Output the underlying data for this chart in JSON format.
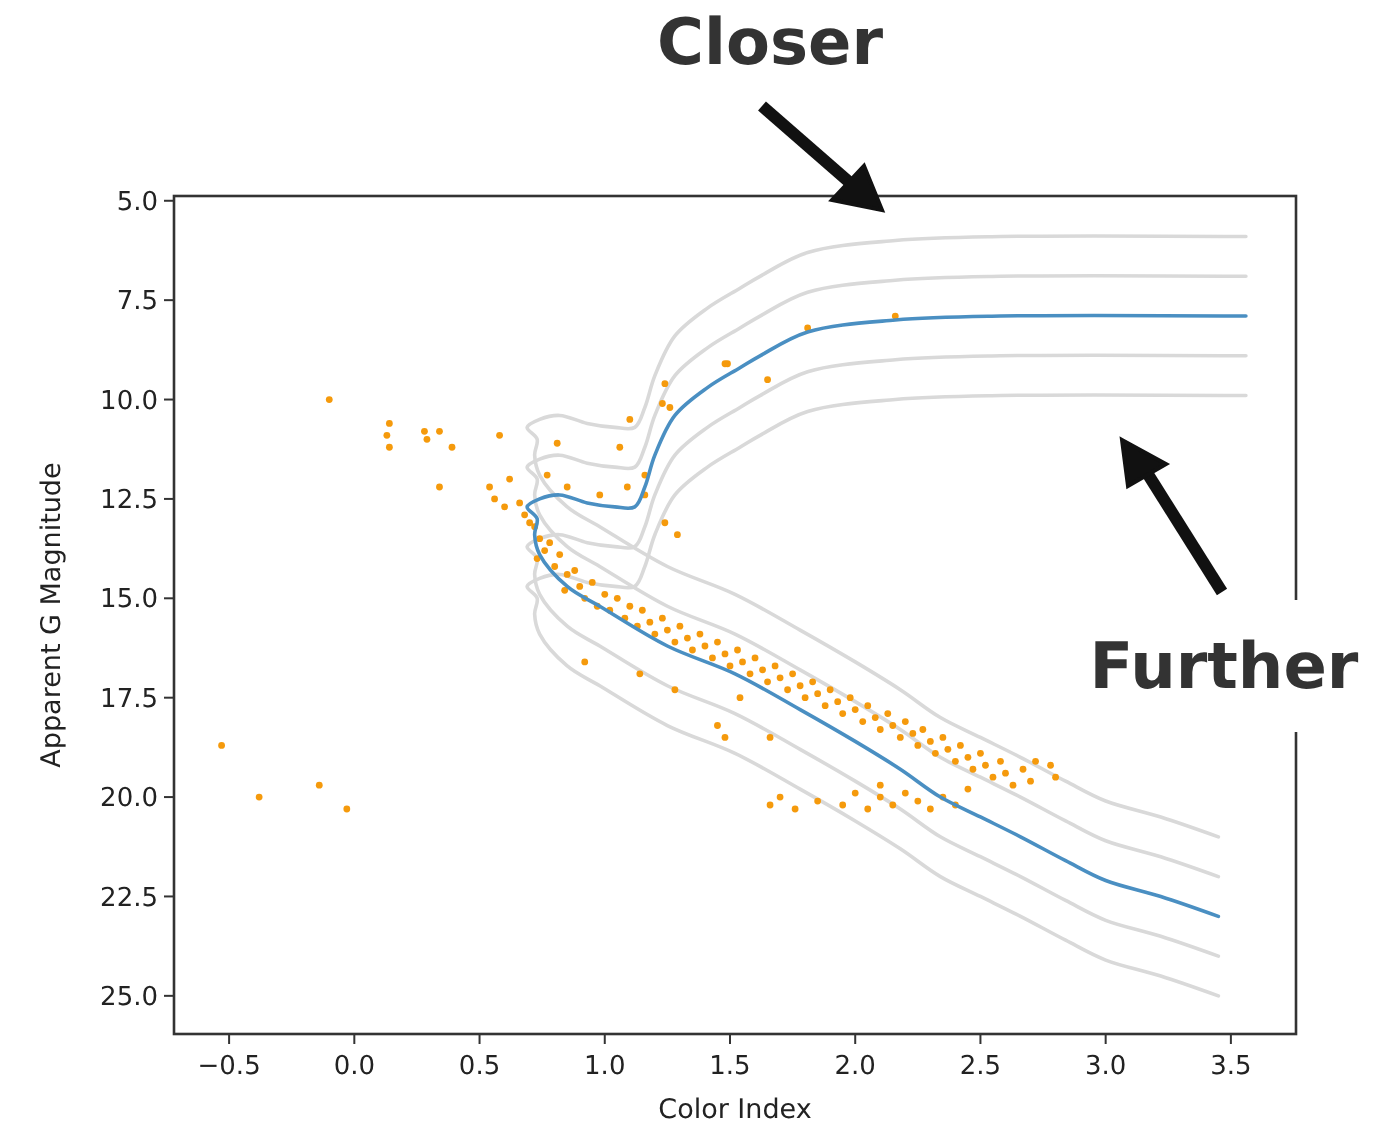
{
  "chart_data": {
    "type": "scatter",
    "xlabel": "Color Index",
    "ylabel": "Apparent G Magnitude",
    "annotations": [
      "Closer",
      "Further"
    ],
    "xlim": [
      -0.72,
      3.76
    ],
    "ylim": [
      25.96,
      4.88
    ],
    "xticks": [
      {
        "value": -0.5,
        "label": "−0.5"
      },
      {
        "value": 0,
        "label": "0.0"
      },
      {
        "value": 0.5,
        "label": "0.5"
      },
      {
        "value": 1,
        "label": "1.0"
      },
      {
        "value": 1.5,
        "label": "1.5"
      },
      {
        "value": 2,
        "label": "2.0"
      },
      {
        "value": 2.5,
        "label": "2.5"
      },
      {
        "value": 3,
        "label": "3.0"
      },
      {
        "value": 3.5,
        "label": "3.5"
      }
    ],
    "yticks": [
      {
        "value": 5,
        "label": "5.0"
      },
      {
        "value": 7.5,
        "label": "7.5"
      },
      {
        "value": 10,
        "label": "10.0"
      },
      {
        "value": 12.5,
        "label": "12.5"
      },
      {
        "value": 15,
        "label": "15.0"
      },
      {
        "value": 17.5,
        "label": "17.5"
      },
      {
        "value": 20,
        "label": "20.0"
      },
      {
        "value": 22.5,
        "label": "22.5"
      },
      {
        "value": 25,
        "label": "25.0"
      }
    ],
    "grid": false,
    "series": [
      {
        "type": "line",
        "color": "#d9d9d9",
        "x": [
          3.56,
          2.58,
          2.16,
          1.81,
          1.62,
          1.54,
          1.41,
          1.28,
          1.2,
          1.16,
          1.12,
          1.04,
          0.93,
          0.82,
          0.74,
          0.69,
          0.73,
          0.72,
          0.74,
          0.85,
          0.98,
          1.25,
          1.52,
          1.78,
          2.0,
          2.18,
          2.34,
          2.5,
          2.66,
          2.84,
          3.0,
          3.22,
          3.45
        ],
        "values": [
          5.9,
          5.9,
          6.0,
          6.3,
          6.9,
          7.2,
          7.7,
          8.4,
          9.4,
          10.2,
          10.7,
          10.7,
          10.6,
          10.4,
          10.5,
          10.7,
          11.0,
          11.4,
          11.9,
          12.7,
          13.2,
          14.2,
          14.9,
          15.8,
          16.6,
          17.3,
          18.0,
          18.5,
          19.0,
          19.6,
          20.1,
          20.5,
          21.0
        ]
      },
      {
        "type": "line",
        "color": "#d9d9d9",
        "x": [
          3.56,
          2.58,
          2.16,
          1.81,
          1.62,
          1.54,
          1.41,
          1.28,
          1.2,
          1.16,
          1.12,
          1.04,
          0.93,
          0.82,
          0.74,
          0.69,
          0.73,
          0.72,
          0.74,
          0.85,
          0.98,
          1.25,
          1.52,
          1.78,
          2.0,
          2.18,
          2.34,
          2.5,
          2.66,
          2.84,
          3.0,
          3.22,
          3.45
        ],
        "values": [
          6.9,
          6.9,
          7.0,
          7.3,
          7.9,
          8.2,
          8.7,
          9.4,
          10.4,
          11.2,
          11.7,
          11.7,
          11.6,
          11.4,
          11.5,
          11.7,
          12.0,
          12.4,
          12.9,
          13.7,
          14.2,
          15.2,
          15.9,
          16.8,
          17.6,
          18.3,
          19.0,
          19.5,
          20.0,
          20.6,
          21.1,
          21.5,
          22.0
        ]
      },
      {
        "type": "line",
        "color": "#d9d9d9",
        "x": [
          3.56,
          2.58,
          2.16,
          1.81,
          1.62,
          1.54,
          1.41,
          1.28,
          1.2,
          1.16,
          1.12,
          1.04,
          0.93,
          0.82,
          0.74,
          0.69,
          0.73,
          0.72,
          0.74,
          0.85,
          0.98,
          1.25,
          1.52,
          1.78,
          2.0,
          2.18,
          2.34,
          2.5,
          2.66,
          2.84,
          3.0,
          3.22,
          3.45
        ],
        "values": [
          8.9,
          8.9,
          9.0,
          9.3,
          9.9,
          10.2,
          10.7,
          11.4,
          12.4,
          13.2,
          13.7,
          13.7,
          13.6,
          13.4,
          13.5,
          13.7,
          14.0,
          14.4,
          14.9,
          15.7,
          16.2,
          17.2,
          17.9,
          18.8,
          19.6,
          20.3,
          21.0,
          21.5,
          22.0,
          22.6,
          23.1,
          23.5,
          24.0
        ]
      },
      {
        "type": "line",
        "color": "#d9d9d9",
        "x": [
          3.56,
          2.58,
          2.16,
          1.81,
          1.62,
          1.54,
          1.41,
          1.28,
          1.2,
          1.16,
          1.12,
          1.04,
          0.93,
          0.82,
          0.74,
          0.69,
          0.73,
          0.72,
          0.74,
          0.85,
          0.98,
          1.25,
          1.52,
          1.78,
          2.0,
          2.18,
          2.34,
          2.5,
          2.66,
          2.84,
          3.0,
          3.22,
          3.45
        ],
        "values": [
          9.9,
          9.9,
          10.0,
          10.3,
          10.9,
          11.2,
          11.7,
          12.4,
          13.4,
          14.2,
          14.7,
          14.7,
          14.6,
          14.4,
          14.5,
          14.7,
          15.0,
          15.4,
          15.9,
          16.7,
          17.2,
          18.2,
          18.9,
          19.8,
          20.6,
          21.3,
          22.0,
          22.5,
          23.0,
          23.6,
          24.1,
          24.5,
          25.0
        ]
      },
      {
        "color": "#f59a0c",
        "marker": "circle",
        "x": [
          -0.53,
          -0.38,
          -0.14,
          -0.03,
          -0.1,
          0.14,
          0.13,
          0.14,
          0.28,
          0.29,
          0.34,
          0.39,
          0.34,
          0.58,
          0.54,
          0.56,
          0.6,
          0.62,
          0.81,
          1.06,
          1.1,
          1.24,
          1.23,
          1.26,
          1.49,
          1.24,
          1.29,
          0.77,
          0.85,
          0.98,
          1.09,
          1.16,
          1.16,
          2.16,
          1.81,
          1.65,
          1.48,
          0.92,
          1.14,
          1.28,
          1.45,
          1.48,
          1.54,
          1.66,
          0.66,
          0.68,
          0.7,
          0.72,
          0.74,
          0.76,
          0.73,
          0.78,
          0.8,
          0.82,
          0.85,
          0.84,
          0.88,
          0.9,
          0.92,
          0.95,
          0.97,
          1.0,
          1.02,
          1.05,
          1.08,
          1.1,
          1.13,
          1.15,
          1.18,
          1.2,
          1.23,
          1.25,
          1.28,
          1.3,
          1.33,
          1.35,
          1.38,
          1.4,
          1.43,
          1.45,
          1.48,
          1.5,
          1.53,
          1.55,
          1.58,
          1.6,
          1.63,
          1.65,
          1.68,
          1.7,
          1.73,
          1.75,
          1.78,
          1.8,
          1.83,
          1.85,
          1.88,
          1.9,
          1.93,
          1.95,
          1.98,
          2.0,
          2.03,
          2.05,
          2.08,
          2.1,
          2.13,
          2.15,
          2.18,
          2.2,
          2.23,
          2.25,
          2.27,
          2.3,
          2.32,
          2.35,
          2.37,
          2.4,
          2.42,
          2.45,
          2.47,
          2.5,
          2.52,
          2.55,
          2.58,
          2.6,
          2.63,
          2.67,
          2.7,
          2.72,
          2.78,
          2.8,
          1.66,
          1.7,
          1.76,
          1.85,
          1.95,
          2.0,
          2.05,
          2.1,
          2.15,
          2.2,
          2.25,
          2.3,
          2.35,
          2.4,
          2.45,
          2.1
        ],
        "values": [
          18.7,
          20.0,
          19.7,
          20.3,
          10.0,
          10.6,
          10.9,
          11.2,
          10.8,
          11.0,
          10.8,
          11.2,
          12.2,
          10.9,
          12.2,
          12.5,
          12.7,
          12.0,
          11.1,
          11.2,
          10.5,
          9.6,
          10.1,
          10.2,
          9.1,
          13.1,
          13.4,
          11.9,
          12.2,
          12.4,
          12.2,
          12.4,
          11.9,
          7.9,
          8.2,
          9.5,
          9.1,
          16.6,
          16.9,
          17.3,
          18.2,
          18.5,
          17.5,
          18.5,
          12.6,
          12.9,
          13.1,
          13.2,
          13.5,
          13.8,
          14.0,
          13.6,
          14.2,
          13.9,
          14.4,
          14.8,
          14.3,
          14.7,
          15.0,
          14.6,
          15.2,
          14.9,
          15.3,
          15.0,
          15.5,
          15.2,
          15.7,
          15.3,
          15.6,
          15.9,
          15.5,
          15.8,
          16.1,
          15.7,
          16.0,
          16.3,
          15.9,
          16.2,
          16.5,
          16.1,
          16.4,
          16.7,
          16.3,
          16.6,
          16.9,
          16.5,
          16.8,
          17.1,
          16.7,
          17.0,
          17.3,
          16.9,
          17.2,
          17.5,
          17.1,
          17.4,
          17.7,
          17.3,
          17.6,
          17.9,
          17.5,
          17.8,
          18.1,
          17.7,
          18.0,
          18.3,
          17.9,
          18.2,
          18.5,
          18.1,
          18.4,
          18.7,
          18.3,
          18.6,
          18.9,
          18.5,
          18.8,
          19.1,
          18.7,
          19.0,
          19.3,
          18.9,
          19.2,
          19.5,
          19.1,
          19.4,
          19.7,
          19.3,
          19.6,
          19.1,
          19.2,
          19.5,
          20.2,
          20.0,
          20.3,
          20.1,
          20.2,
          19.9,
          20.3,
          20.0,
          20.2,
          19.9,
          20.1,
          20.3,
          20.0,
          20.2,
          19.8,
          19.7
        ]
      },
      {
        "type": "line",
        "color": "#4a8fc2",
        "x": [
          3.56,
          2.58,
          2.16,
          1.81,
          1.62,
          1.54,
          1.41,
          1.28,
          1.2,
          1.16,
          1.12,
          1.04,
          0.93,
          0.82,
          0.74,
          0.69,
          0.73,
          0.72,
          0.74,
          0.85,
          0.98,
          1.25,
          1.52,
          1.78,
          2.0,
          2.18,
          2.34,
          2.5,
          2.66,
          2.84,
          3.0,
          3.22,
          3.45
        ],
        "values": [
          7.9,
          7.9,
          8.0,
          8.3,
          8.9,
          9.2,
          9.7,
          10.4,
          11.4,
          12.2,
          12.7,
          12.7,
          12.6,
          12.4,
          12.5,
          12.7,
          13.0,
          13.4,
          13.9,
          14.7,
          15.2,
          16.2,
          16.9,
          17.8,
          18.6,
          19.3,
          20.0,
          20.5,
          21.0,
          21.6,
          22.1,
          22.5,
          23.0
        ]
      }
    ]
  }
}
